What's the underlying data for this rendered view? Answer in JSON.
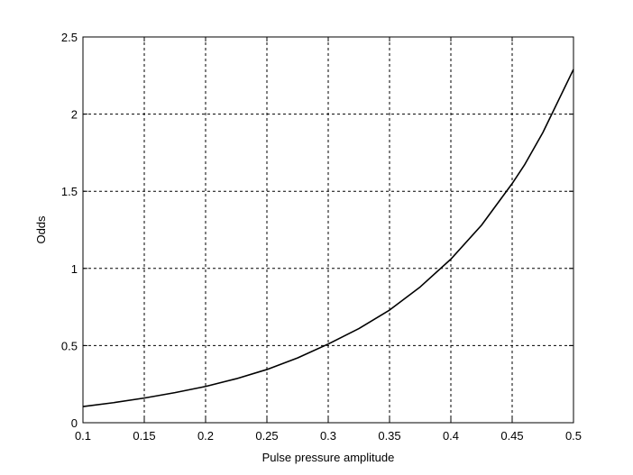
{
  "chart_data": {
    "type": "line",
    "title": "",
    "xlabel": "Pulse pressure amplitude",
    "ylabel": "Odds",
    "xlim": [
      0.1,
      0.5
    ],
    "ylim": [
      0,
      2.5
    ],
    "xticks": [
      0.1,
      0.15,
      0.2,
      0.25,
      0.3,
      0.35,
      0.4,
      0.45,
      0.5
    ],
    "xtick_labels": [
      "0.1",
      "0.15",
      "0.2",
      "0.25",
      "0.3",
      "0.35",
      "0.4",
      "0.45",
      "0.5"
    ],
    "yticks": [
      0,
      0.5,
      1,
      1.5,
      2,
      2.5
    ],
    "ytick_labels": [
      "0",
      "0.5",
      "1",
      "1.5",
      "2",
      "2.5"
    ],
    "grid": true,
    "series": [
      {
        "x": [
          0.1,
          0.125,
          0.15,
          0.175,
          0.2,
          0.225,
          0.25,
          0.275,
          0.3,
          0.325,
          0.35,
          0.375,
          0.4,
          0.425,
          0.45,
          0.46,
          0.475,
          0.5
        ],
        "y": [
          0.105,
          0.13,
          0.16,
          0.195,
          0.235,
          0.285,
          0.345,
          0.42,
          0.51,
          0.61,
          0.73,
          0.88,
          1.06,
          1.28,
          1.55,
          1.67,
          1.88,
          2.29
        ]
      }
    ]
  }
}
